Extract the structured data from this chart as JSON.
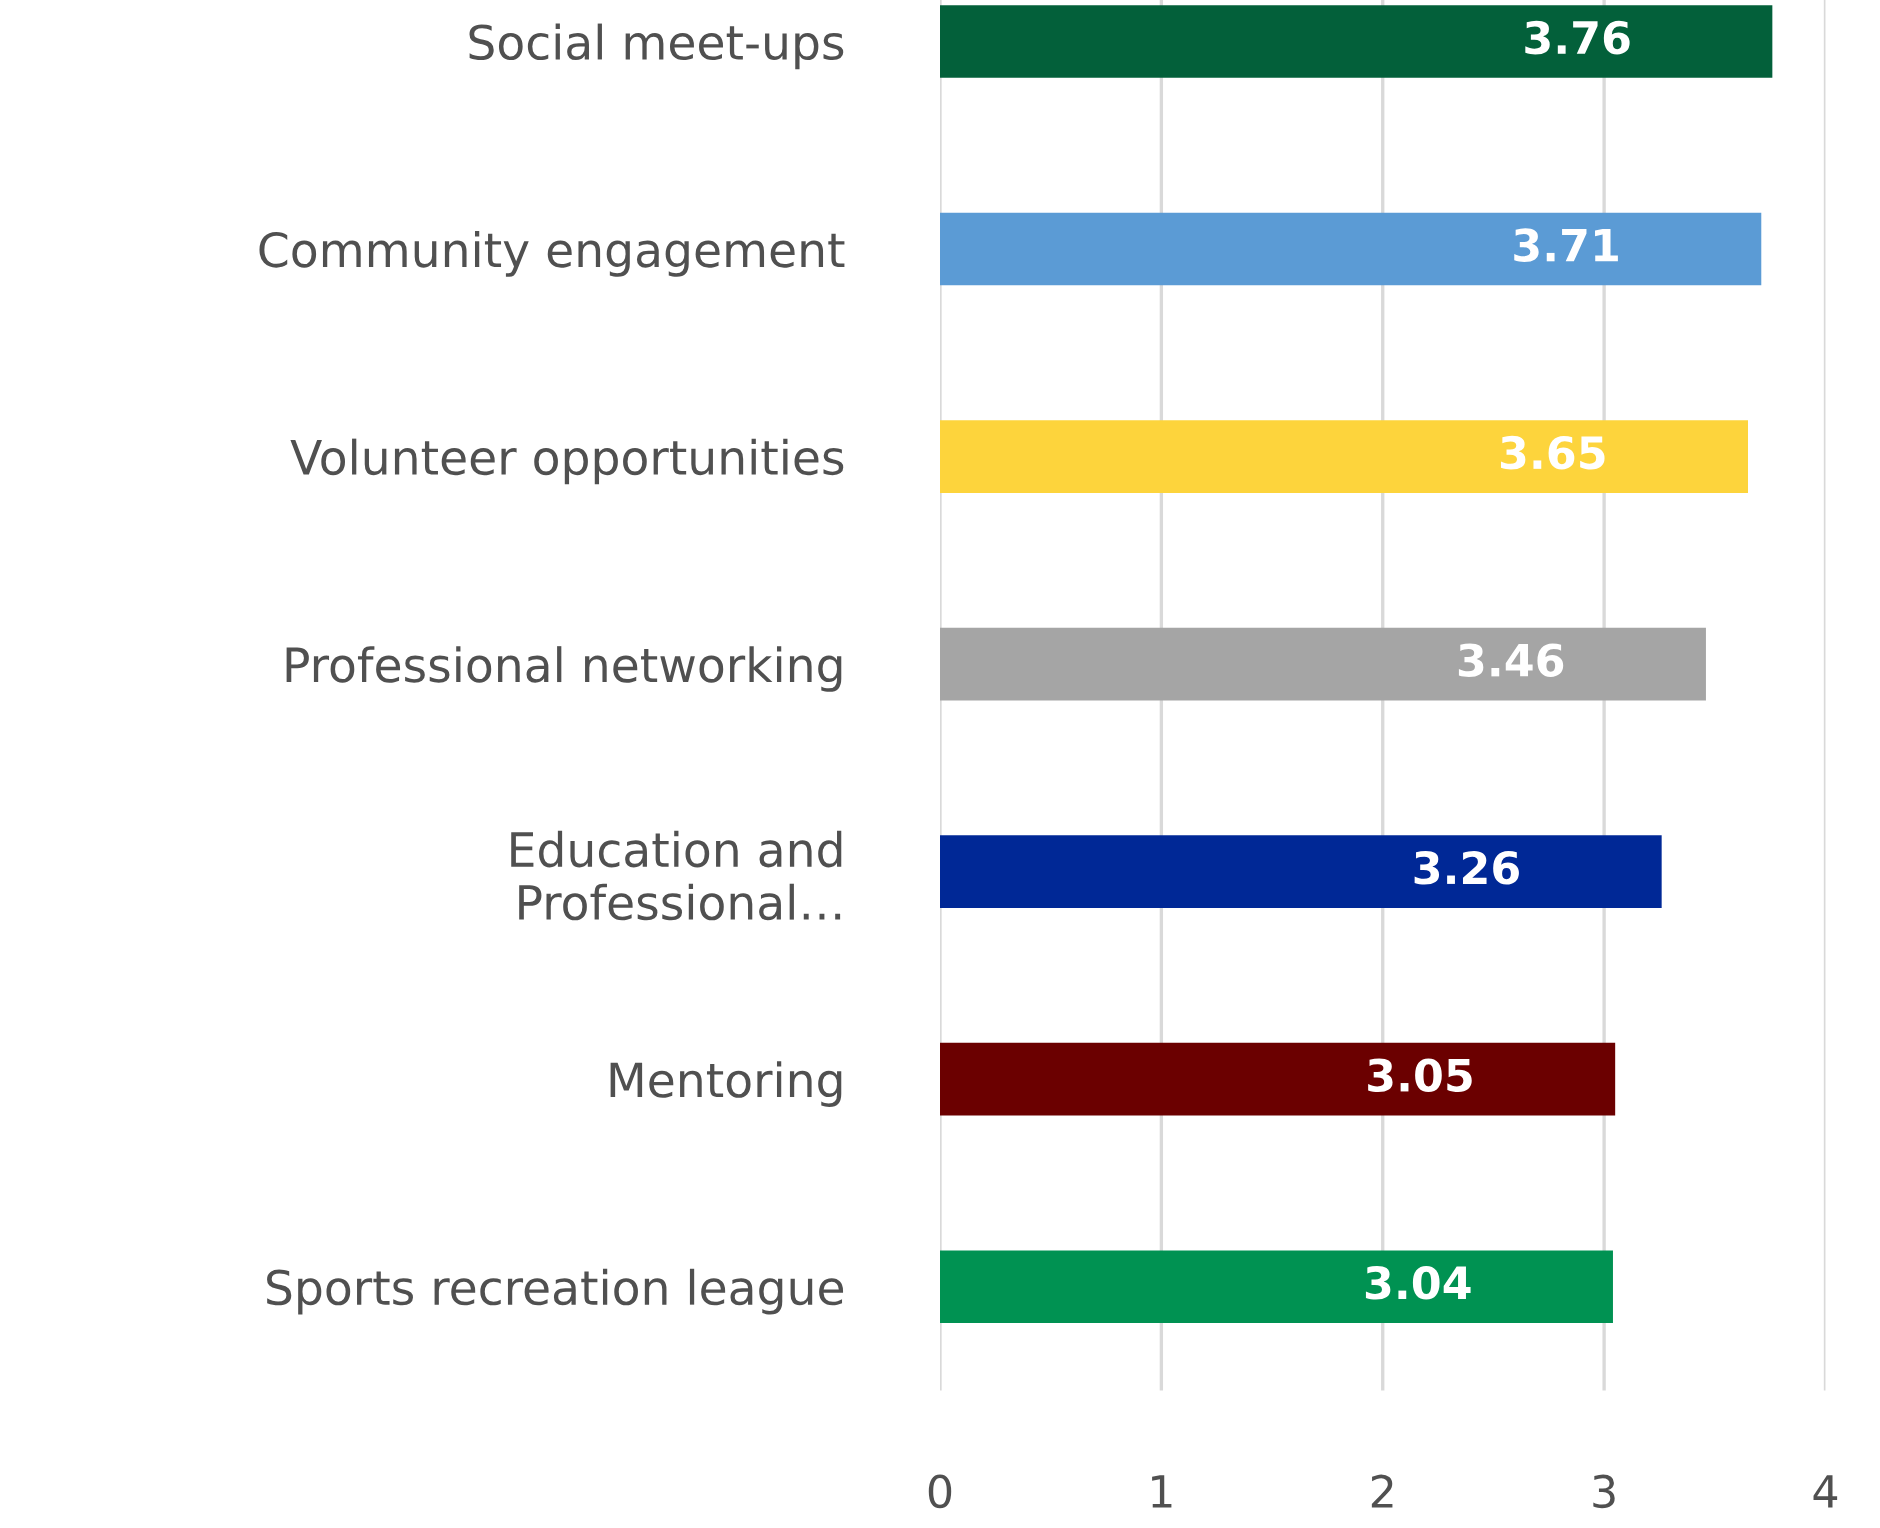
{
  "chart_data": {
    "type": "bar",
    "orientation": "horizontal",
    "categories": [
      "Social meet-ups",
      "Community engagement",
      "Volunteer opportunities",
      "Professional networking",
      "Education and\nProfessional…",
      "Mentoring",
      "Sports recreation league"
    ],
    "values": [
      3.76,
      3.71,
      3.65,
      3.46,
      3.26,
      3.05,
      3.04
    ],
    "colors": [
      "#03603a",
      "#5b9bd5",
      "#fdd43c",
      "#a5a5a5",
      "#002896",
      "#6b0000",
      "#009252"
    ],
    "xlim": [
      0,
      4
    ],
    "xticks": [
      0,
      1,
      2,
      3,
      4
    ],
    "grid": "x",
    "data_labels": true
  }
}
